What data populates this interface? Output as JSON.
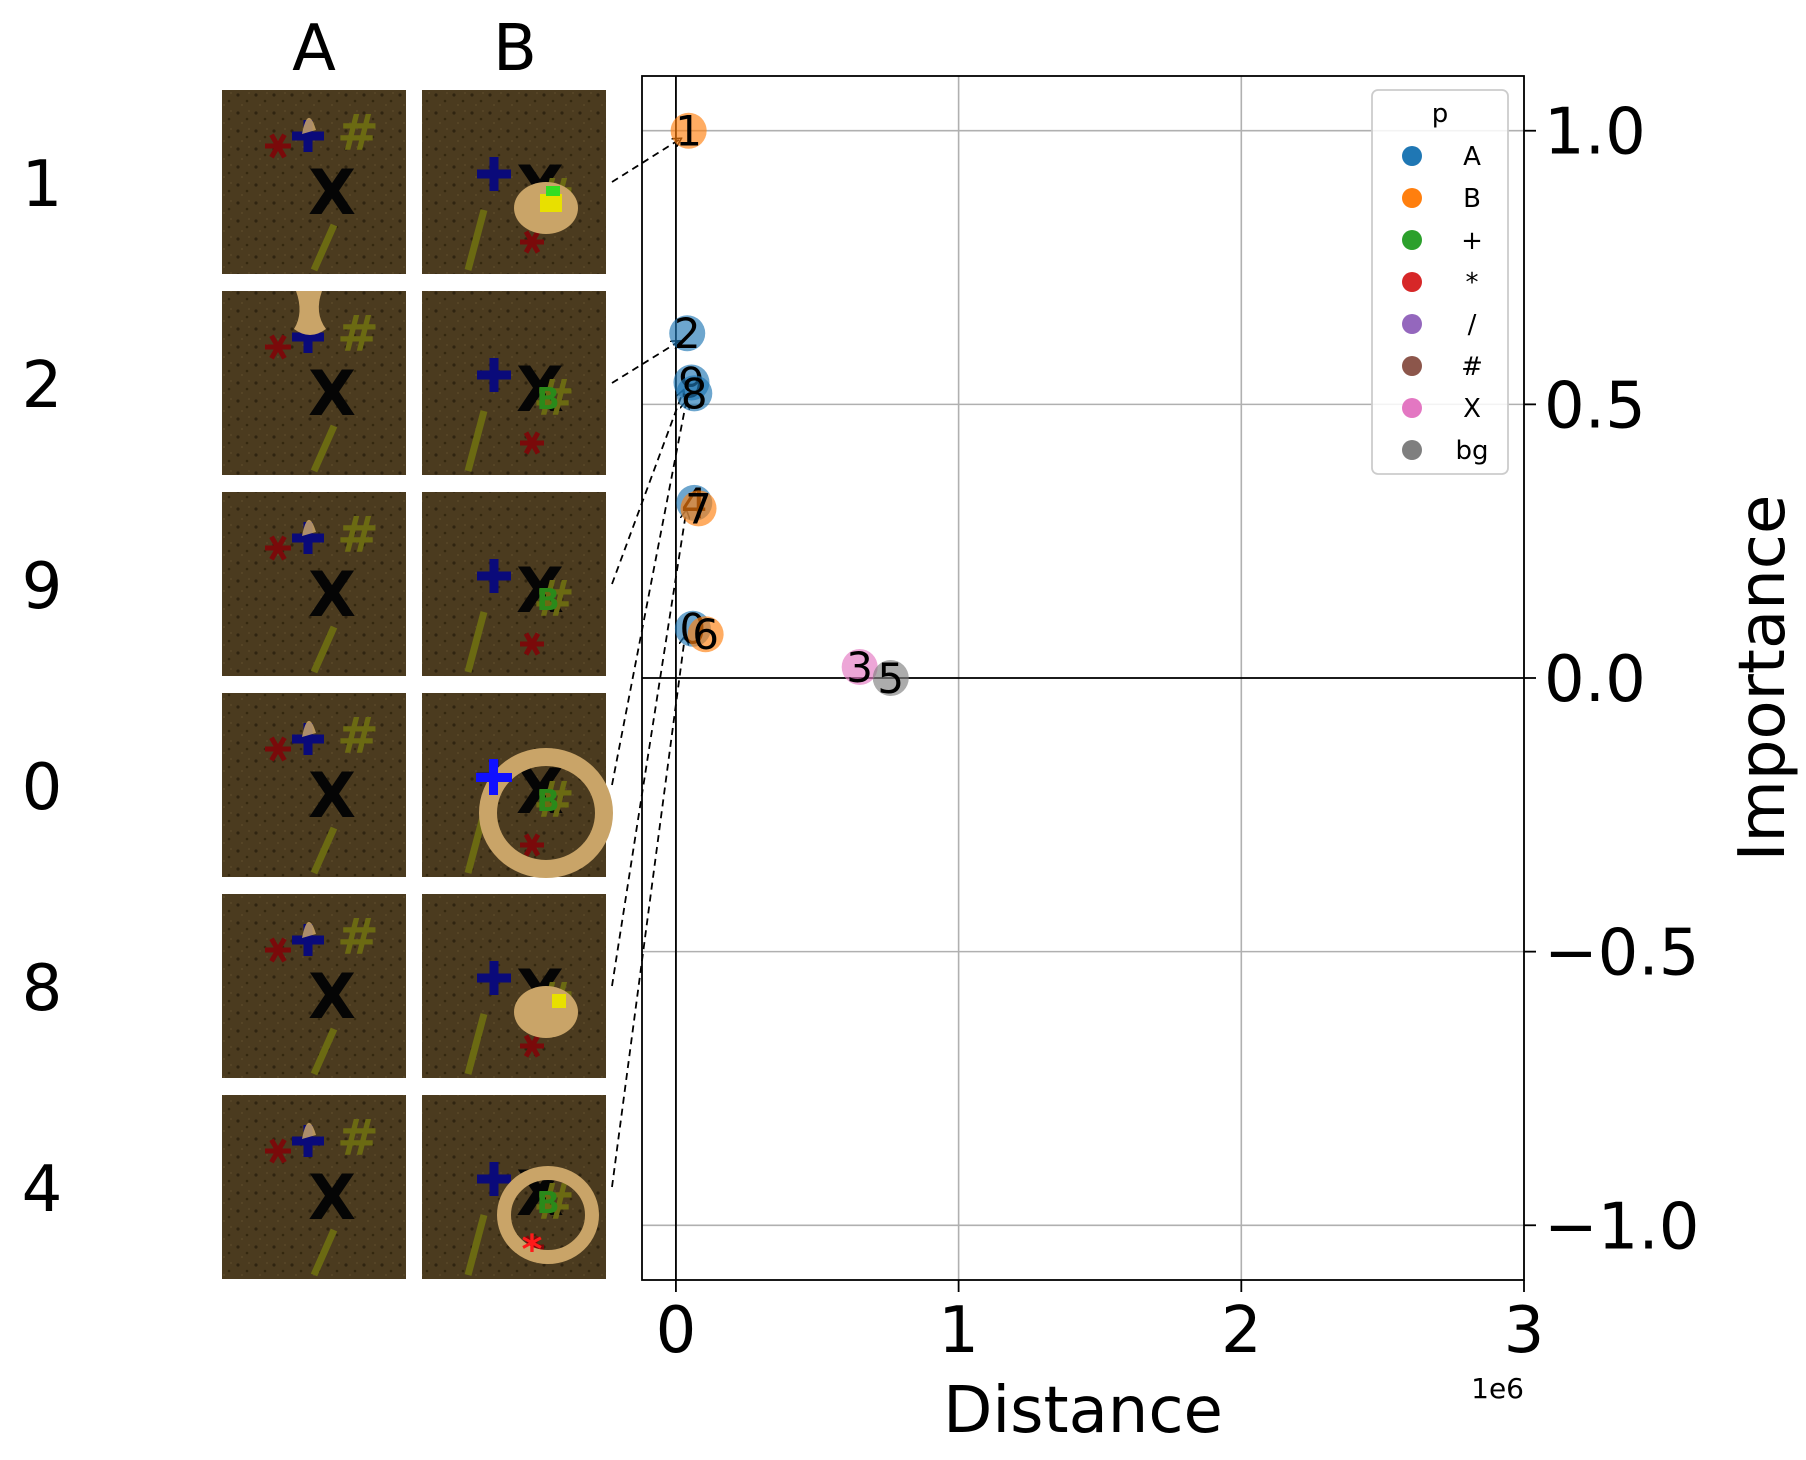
{
  "column_headers": [
    "A",
    "B"
  ],
  "row_labels": [
    "1",
    "2",
    "9",
    "0",
    "8",
    "4"
  ],
  "colors": {
    "A": "#1f77b4",
    "B": "#ff7f0e",
    "+": "#2ca02c",
    "*": "#d62728",
    "/": "#9467bd",
    "#": "#8c564b",
    "X": "#e377c2",
    "bg": "#7f7f7f",
    "tile_bg": "#4a3a1e",
    "tile_bg_dark": "#3a2c15",
    "blob": "#c9a468",
    "sym_plus": "#0a0a7a",
    "sym_star": "#7a0a0a",
    "sym_hash": "#6b6a12",
    "sym_slash": "#6b6a12",
    "sym_x": "#050505",
    "sym_b": "#2a8a1a"
  },
  "tiles": {
    "A": [
      {
        "blob": "small-top"
      },
      {
        "blob": "top-cone"
      },
      {
        "blob": "small-top"
      },
      {
        "blob": "small-top"
      },
      {
        "blob": "small-top"
      },
      {
        "blob": "small-top"
      }
    ],
    "B": [
      {
        "blob": "medium-right",
        "highlight": "yellow-green"
      },
      {
        "blob": "none"
      },
      {
        "blob": "none"
      },
      {
        "blob": "large-ring",
        "highlight": "blue-plus"
      },
      {
        "blob": "medium-right",
        "highlight": "yellow"
      },
      {
        "blob": "ring-bottom",
        "highlight": "red-star"
      }
    ]
  },
  "chart_data": {
    "type": "scatter",
    "xlabel": "Distance",
    "ylabel": "Importance",
    "x_offset_text": "1e6",
    "x_unit_multiplier": 1000000,
    "xlim": [
      -120000,
      3000000
    ],
    "ylim": [
      -1.1,
      1.1
    ],
    "xticks": [
      0,
      1000000,
      2000000,
      3000000
    ],
    "xtick_labels": [
      "0",
      "1",
      "2",
      "3"
    ],
    "yticks": [
      -1.0,
      -0.5,
      0.0,
      0.5,
      1.0
    ],
    "ytick_labels": [
      "−1.0",
      "−0.5",
      "0.0",
      "0.5",
      "1.0"
    ],
    "grid": true,
    "yaxis_position": "right",
    "legend": {
      "title": "p",
      "placement": "top-right",
      "entries": [
        "A",
        "B",
        "+",
        "*",
        "/",
        "#",
        "X",
        "bg"
      ]
    },
    "points": [
      {
        "label": "1",
        "p": "B",
        "x": 45000,
        "y": 1.0
      },
      {
        "label": "2",
        "p": "A",
        "x": 40000,
        "y": 0.63
      },
      {
        "label": "9",
        "p": "A",
        "x": 55000,
        "y": 0.54
      },
      {
        "label": "8",
        "p": "A",
        "x": 65000,
        "y": 0.52
      },
      {
        "label": "4",
        "p": "A",
        "x": 65000,
        "y": 0.32
      },
      {
        "label": "7",
        "p": "B",
        "x": 80000,
        "y": 0.31
      },
      {
        "label": "0",
        "p": "A",
        "x": 60000,
        "y": 0.09
      },
      {
        "label": "6",
        "p": "B",
        "x": 105000,
        "y": 0.08
      },
      {
        "label": "3",
        "p": "X",
        "x": 650000,
        "y": 0.02
      },
      {
        "label": "5",
        "p": "bg",
        "x": 760000,
        "y": 0.0
      }
    ],
    "arrows": [
      {
        "from_row": "1",
        "to_point": "1"
      },
      {
        "from_row": "2",
        "to_point": "2"
      },
      {
        "from_row": "9",
        "to_point": "9"
      },
      {
        "from_row": "0",
        "to_point": "8"
      },
      {
        "from_row": "8",
        "to_point": "4"
      },
      {
        "from_row": "4",
        "to_point": "0"
      }
    ]
  }
}
